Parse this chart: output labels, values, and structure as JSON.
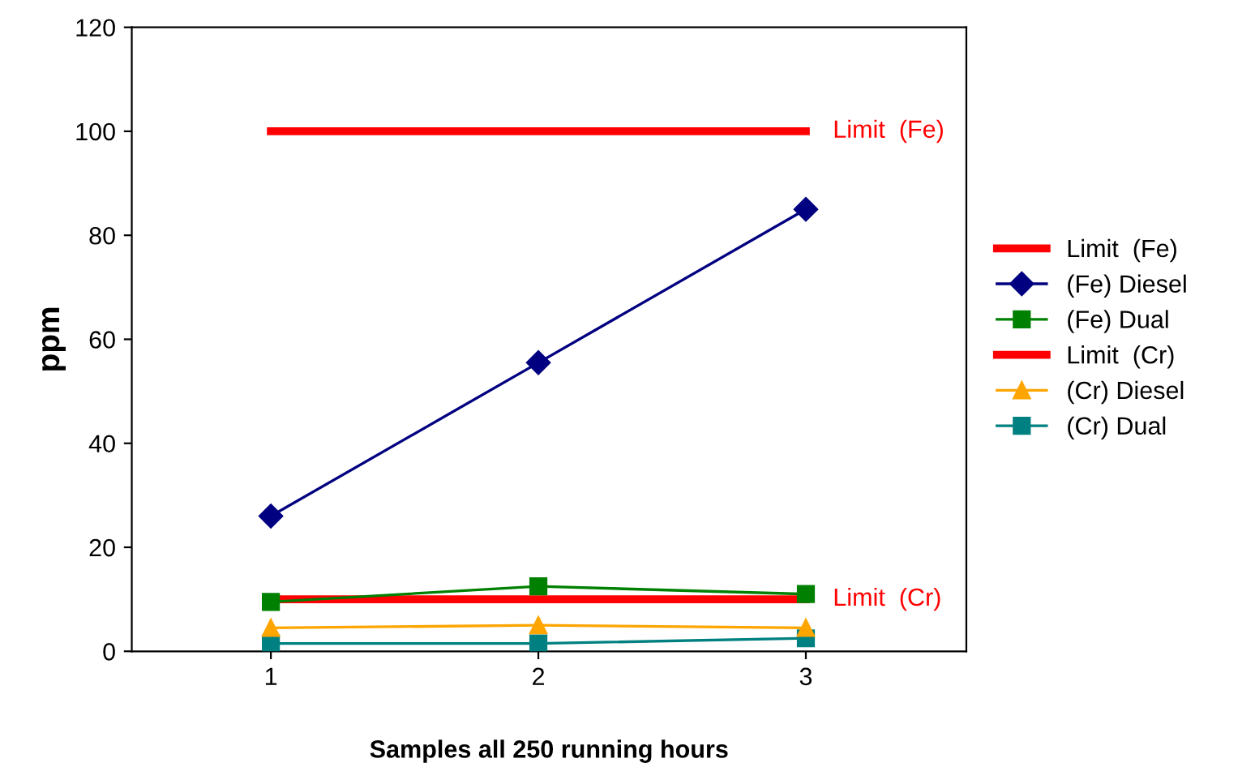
{
  "chart_data": {
    "type": "line",
    "xlabel": "Samples all 250 running hours",
    "ylabel": "ppm",
    "categories": [
      "1",
      "2",
      "3"
    ],
    "series": [
      {
        "name": "Limit  (Fe)",
        "color": "#ff0000",
        "values": [
          100,
          100,
          100
        ],
        "marker": "none"
      },
      {
        "name": "(Fe) Diesel",
        "color": "#000080",
        "values": [
          26,
          55.5,
          85
        ],
        "marker": "diamond"
      },
      {
        "name": "(Fe) Dual",
        "color": "#008000",
        "values": [
          9.5,
          12.5,
          11
        ],
        "marker": "square"
      },
      {
        "name": "Limit  (Cr)",
        "color": "#ff0000",
        "values": [
          10,
          10,
          10
        ],
        "marker": "none"
      },
      {
        "name": "(Cr) Diesel",
        "color": "#ffa500",
        "values": [
          4.5,
          5,
          4.5
        ],
        "marker": "triangle"
      },
      {
        "name": "(Cr) Dual",
        "color": "#008080",
        "values": [
          1.5,
          1.5,
          2.5
        ],
        "marker": "square"
      }
    ],
    "annotations": [
      {
        "text": "Limit  (Fe)",
        "x": "3",
        "y": 100
      },
      {
        "text": "Limit  (Cr)",
        "x": "3",
        "y": 10
      }
    ],
    "ylim": [
      0,
      120
    ],
    "yticks": [
      0,
      20,
      40,
      60,
      80,
      100,
      120
    ],
    "grid": false,
    "legend": "right"
  }
}
